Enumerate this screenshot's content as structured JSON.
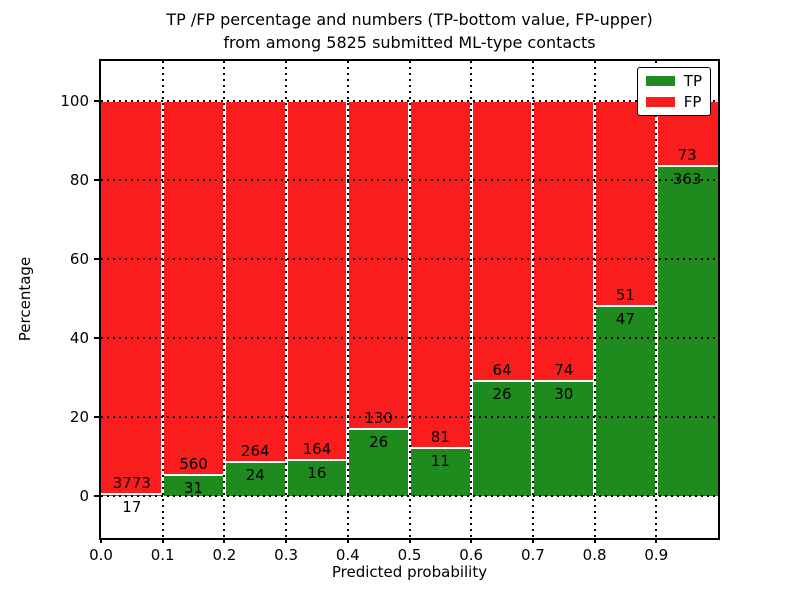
{
  "chart_data": {
    "type": "bar",
    "stacked": true,
    "normalized_to_percent": true,
    "title_line1": "TP /FP percentage and numbers (TP-bottom value, FP-upper)",
    "title_line2": "from among 5825 submitted ML-type contacts",
    "xlabel": "Predicted probability",
    "ylabel": "Percentage",
    "x_tick_labels": [
      "0.0",
      "0.1",
      "0.2",
      "0.3",
      "0.4",
      "0.5",
      "0.6",
      "0.7",
      "0.8",
      "0.9"
    ],
    "y_tick_values": [
      0,
      20,
      40,
      60,
      80,
      100
    ],
    "xlim": [
      0.0,
      1.0
    ],
    "ylim": [
      -10.5,
      110
    ],
    "grid": "dotted",
    "bin_width": 0.1,
    "bins": [
      {
        "x_start": 0.0,
        "x_end": 0.1,
        "tp": 17,
        "fp": 3773
      },
      {
        "x_start": 0.1,
        "x_end": 0.2,
        "tp": 31,
        "fp": 560
      },
      {
        "x_start": 0.2,
        "x_end": 0.3,
        "tp": 24,
        "fp": 264
      },
      {
        "x_start": 0.3,
        "x_end": 0.4,
        "tp": 16,
        "fp": 164
      },
      {
        "x_start": 0.4,
        "x_end": 0.5,
        "tp": 26,
        "fp": 130
      },
      {
        "x_start": 0.5,
        "x_end": 0.6,
        "tp": 11,
        "fp": 81
      },
      {
        "x_start": 0.6,
        "x_end": 0.7,
        "tp": 26,
        "fp": 64
      },
      {
        "x_start": 0.7,
        "x_end": 0.8,
        "tp": 30,
        "fp": 74
      },
      {
        "x_start": 0.8,
        "x_end": 0.9,
        "tp": 47,
        "fp": 51
      },
      {
        "x_start": 0.9,
        "x_end": 1.0,
        "tp": 363,
        "fp": 73
      }
    ],
    "legend": {
      "position": "upper-right",
      "items": [
        {
          "label": "TP",
          "color": "#1f8b1f"
        },
        {
          "label": "FP",
          "color": "#fa1d1d"
        }
      ]
    },
    "colors": {
      "tp": "#1f8b1f",
      "fp": "#fa1d1d",
      "grid": "#000000",
      "axis": "#000000",
      "background": "#ffffff"
    }
  }
}
